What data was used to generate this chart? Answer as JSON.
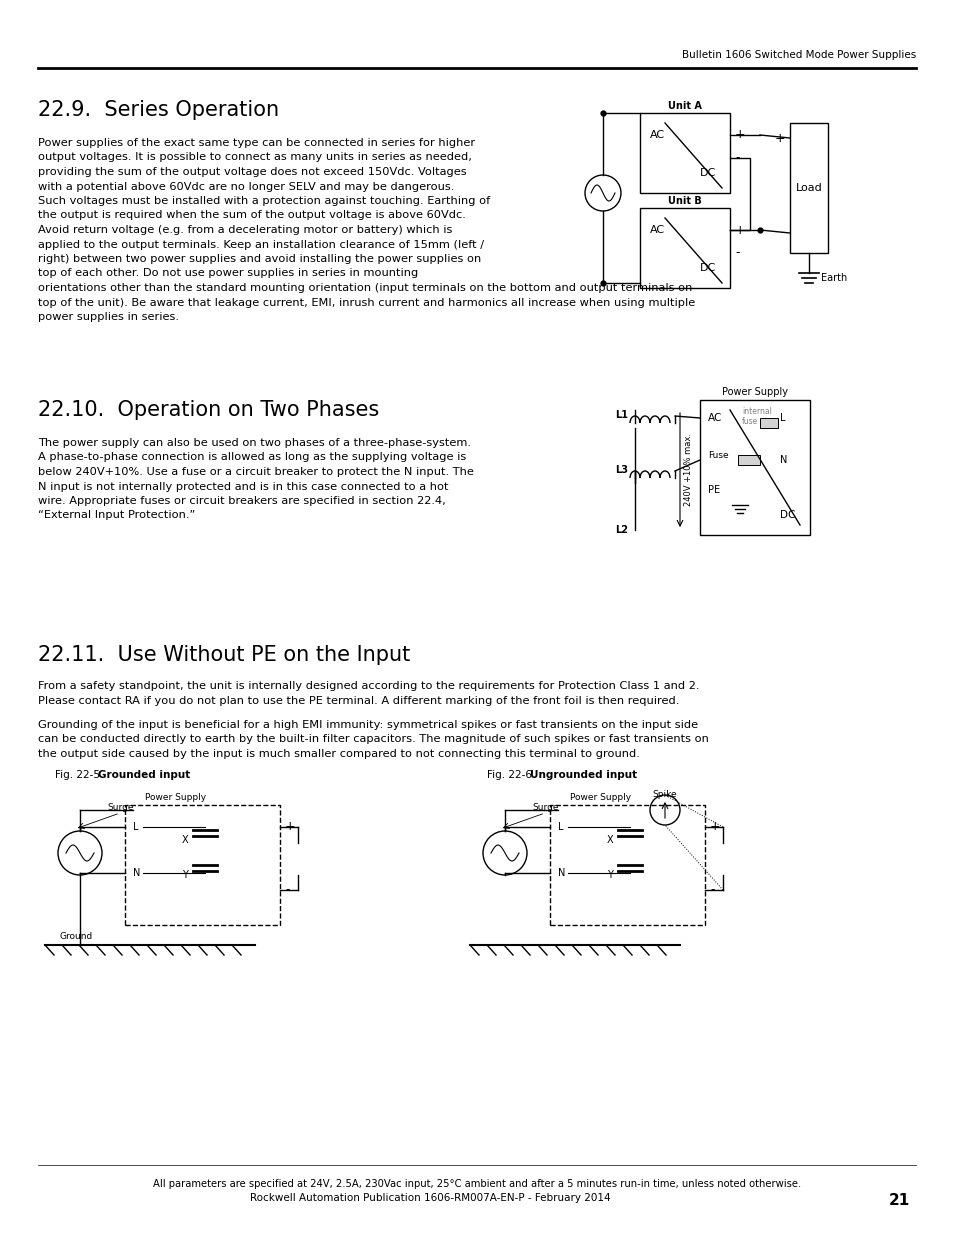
{
  "bg_color": "#ffffff",
  "text_color": "#000000",
  "page_width": 9.54,
  "page_height": 12.35,
  "header_text": "Bulletin 1606 Switched Mode Power Supplies",
  "footer_note": "All parameters are specified at 24V, 2.5A, 230Vac input, 25°C ambient and after a 5 minutes run-in time, unless noted otherwise.",
  "footer_pub": "Rockwell Automation Publication 1606-RM007A-EN-P - February 2014",
  "footer_page": "21",
  "section1_title": "22.9.  Series Operation",
  "section1_body_left": [
    "Power supplies of the exact same type can be connected in series for higher",
    "output voltages. It is possible to connect as many units in series as needed,",
    "providing the sum of the output voltage does not exceed 150Vdc. Voltages",
    "with a potential above 60Vdc are no longer SELV and may be dangerous.",
    "Such voltages must be installed with a protection against touching. Earthing of",
    "the output is required when the sum of the output voltage is above 60Vdc.",
    "Avoid return voltage (e.g. from a decelerating motor or battery) which is",
    "applied to the output terminals. Keep an installation clearance of 15mm (left /",
    "right) between two power supplies and avoid installing the power supplies on",
    "top of each other. Do not use power supplies in series in mounting"
  ],
  "section1_body_full": [
    "orientations other than the standard mounting orientation (input terminals on the bottom and output terminals on",
    "top of the unit). Be aware that leakage current, EMI, inrush current and harmonics all increase when using multiple",
    "power supplies in series."
  ],
  "section2_title": "22.10.  Operation on Two Phases",
  "section2_body": [
    "The power supply can also be used on two phases of a three-phase-system.",
    "A phase-to-phase connection is allowed as long as the supplying voltage is",
    "below 240V+10%. Use a fuse or a circuit breaker to protect the N input. The",
    "N input is not internally protected and is in this case connected to a hot",
    "wire. Appropriate fuses or circuit breakers are specified in section 22.4,",
    "“External Input Protection.”"
  ],
  "section3_title": "22.11.  Use Without PE on the Input",
  "section3_body1": [
    "From a safety standpoint, the unit is internally designed according to the requirements for Protection Class 1 and 2.",
    "Please contact RA if you do not plan to use the PE terminal. A different marking of the front foil is then required."
  ],
  "section3_body2": [
    "Grounding of the input is beneficial for a high EMI immunity: symmetrical spikes or fast transients on the input side",
    "can be conducted directly to earth by the built-in filter capacitors. The magnitude of such spikes or fast transients on",
    "the output side caused by the input is much smaller compared to not connecting this terminal to ground."
  ],
  "fig1_label": "Fig. 22-5",
  "fig1_title": "Grounded input",
  "fig2_label": "Fig. 22-6",
  "fig2_title": "Ungrounded input"
}
